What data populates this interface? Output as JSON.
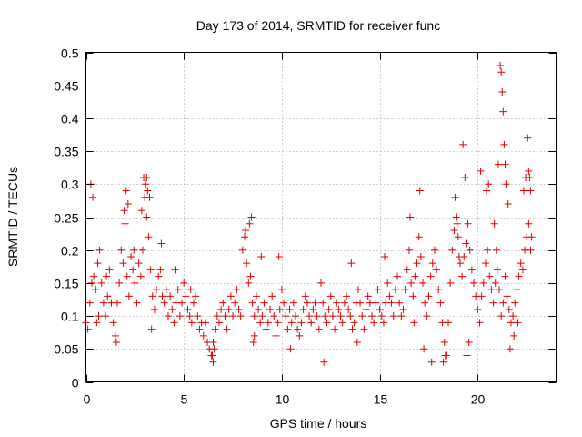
{
  "chart_data": {
    "type": "scatter",
    "title": "Day 173 of 2014, SRMTID for receiver func",
    "xlabel": "GPS time / hours",
    "ylabel": "SRMTID / TECUs",
    "xlim": [
      0,
      24
    ],
    "ylim": [
      0,
      0.5
    ],
    "grid": true,
    "marker": "+",
    "color": "#e00000",
    "x_ticks": [
      0,
      5,
      10,
      15,
      20
    ],
    "x_tick_labels": [
      "0",
      "5",
      "10",
      "15",
      "20"
    ],
    "y_ticks": [
      0,
      0.05,
      0.1,
      0.15,
      0.2,
      0.25,
      0.3,
      0.35,
      0.4,
      0.45,
      0.5
    ],
    "y_tick_labels": [
      "0",
      "0.05",
      "0.1",
      "0.15",
      "0.2",
      "0.25",
      "0.3",
      "0.35",
      "0.4",
      "0.45",
      "0.5"
    ],
    "series": [
      {
        "name": "SRMTID",
        "x": [
          0.0,
          0.1,
          0.2,
          0.3,
          0.4,
          0.5,
          0.6,
          0.7,
          0.8,
          0.9,
          1.0,
          1.1,
          1.2,
          1.3,
          1.4,
          1.5,
          1.6,
          1.7,
          1.8,
          1.9,
          2.0,
          2.1,
          2.2,
          2.3,
          2.4,
          2.5,
          2.6,
          2.7,
          2.8,
          2.9,
          3.0,
          3.1,
          3.2,
          3.3,
          3.4,
          3.5,
          3.6,
          3.7,
          3.8,
          3.9,
          4.0,
          4.1,
          4.2,
          4.3,
          4.4,
          4.5,
          4.6,
          4.7,
          4.8,
          4.9,
          5.0,
          5.1,
          5.2,
          5.3,
          5.4,
          5.5,
          5.6,
          5.7,
          5.8,
          5.9,
          6.0,
          6.1,
          6.2,
          6.3,
          6.4,
          6.5,
          6.6,
          6.7,
          6.8,
          6.9,
          7.0,
          7.1,
          7.2,
          7.3,
          7.4,
          7.5,
          7.6,
          7.7,
          7.8,
          7.9,
          8.0,
          8.1,
          8.2,
          8.3,
          8.4,
          8.5,
          8.6,
          8.7,
          8.8,
          8.9,
          9.0,
          9.1,
          9.2,
          9.3,
          9.4,
          9.5,
          9.6,
          9.7,
          9.8,
          9.9,
          10.0,
          10.1,
          10.2,
          10.3,
          10.4,
          10.5,
          10.6,
          10.7,
          10.8,
          10.9,
          11.0,
          11.1,
          11.2,
          11.3,
          11.4,
          11.5,
          11.6,
          11.7,
          11.8,
          11.9,
          12.0,
          12.1,
          12.2,
          12.3,
          12.4,
          12.5,
          12.6,
          12.7,
          12.8,
          12.9,
          13.0,
          13.1,
          13.2,
          13.3,
          13.4,
          13.5,
          13.6,
          13.7,
          13.8,
          13.9,
          14.0,
          14.1,
          14.2,
          14.3,
          14.4,
          14.5,
          14.6,
          14.7,
          14.8,
          14.9,
          15.0,
          15.1,
          15.2,
          15.3,
          15.4,
          15.5,
          15.6,
          15.7,
          15.8,
          15.9,
          16.0,
          16.1,
          16.2,
          16.3,
          16.4,
          16.5,
          16.6,
          16.7,
          16.8,
          16.9,
          17.0,
          17.1,
          17.2,
          17.3,
          17.4,
          17.5,
          17.6,
          17.7,
          17.8,
          17.9,
          18.0,
          18.1,
          18.2,
          18.3,
          18.4,
          18.5,
          18.6,
          18.7,
          18.8,
          18.9,
          19.0,
          19.1,
          19.2,
          19.3,
          19.4,
          19.5,
          19.6,
          19.7,
          19.8,
          19.9,
          20.0,
          20.1,
          20.2,
          20.3,
          20.4,
          20.5,
          20.6,
          20.7,
          20.8,
          20.9,
          21.0,
          21.1,
          21.2,
          21.3,
          21.4,
          21.5,
          21.6,
          21.7,
          21.8,
          21.9,
          22.0,
          22.1,
          22.2,
          22.3,
          22.4,
          22.5,
          22.6,
          22.7,
          0.25,
          0.35,
          0.55,
          0.65,
          1.05,
          1.55,
          1.95,
          2.05,
          2.15,
          2.45,
          2.85,
          2.95,
          3.05,
          3.1,
          3.15,
          3.25,
          3.35,
          3.85,
          4.55,
          5.35,
          6.45,
          6.5,
          6.55,
          8.15,
          8.35,
          8.45,
          8.55,
          8.6,
          8.95,
          9.85,
          10.45,
          12.15,
          13.55,
          13.85,
          15.25,
          16.55,
          16.75,
          17.05,
          17.25,
          17.65,
          18.25,
          18.35,
          18.85,
          18.95,
          19.05,
          19.25,
          19.35,
          19.45,
          19.55,
          20.15,
          20.45,
          20.55,
          20.85,
          20.95,
          21.05,
          21.15,
          21.2,
          21.25,
          21.3,
          21.35,
          21.4,
          21.45,
          21.55,
          21.65,
          21.85,
          22.05,
          22.35,
          22.45,
          22.55,
          22.6,
          22.65,
          22.7,
          22.75
        ],
        "y": [
          0.09,
          0.08,
          0.12,
          0.15,
          0.16,
          0.14,
          0.18,
          0.2,
          0.15,
          0.12,
          0.1,
          0.13,
          0.17,
          0.12,
          0.09,
          0.07,
          0.12,
          0.15,
          0.2,
          0.18,
          0.24,
          0.16,
          0.13,
          0.19,
          0.17,
          0.15,
          0.12,
          0.18,
          0.16,
          0.2,
          0.28,
          0.25,
          0.22,
          0.17,
          0.13,
          0.11,
          0.14,
          0.16,
          0.17,
          0.13,
          0.12,
          0.14,
          0.1,
          0.13,
          0.11,
          0.09,
          0.12,
          0.14,
          0.1,
          0.12,
          0.15,
          0.13,
          0.11,
          0.1,
          0.09,
          0.12,
          0.13,
          0.1,
          0.08,
          0.09,
          0.07,
          0.09,
          0.06,
          0.05,
          0.04,
          0.06,
          0.08,
          0.1,
          0.09,
          0.11,
          0.12,
          0.1,
          0.08,
          0.11,
          0.13,
          0.1,
          0.12,
          0.14,
          0.11,
          0.1,
          0.2,
          0.22,
          0.18,
          0.15,
          0.16,
          0.12,
          0.1,
          0.13,
          0.11,
          0.09,
          0.1,
          0.12,
          0.08,
          0.09,
          0.11,
          0.13,
          0.1,
          0.07,
          0.09,
          0.11,
          0.14,
          0.12,
          0.1,
          0.08,
          0.11,
          0.09,
          0.12,
          0.1,
          0.08,
          0.07,
          0.09,
          0.11,
          0.13,
          0.12,
          0.1,
          0.09,
          0.11,
          0.12,
          0.1,
          0.08,
          0.15,
          0.12,
          0.1,
          0.09,
          0.11,
          0.13,
          0.1,
          0.08,
          0.12,
          0.11,
          0.1,
          0.09,
          0.12,
          0.13,
          0.11,
          0.1,
          0.08,
          0.09,
          0.12,
          0.14,
          0.12,
          0.1,
          0.08,
          0.11,
          0.13,
          0.12,
          0.1,
          0.09,
          0.12,
          0.14,
          0.11,
          0.1,
          0.09,
          0.12,
          0.15,
          0.13,
          0.12,
          0.1,
          0.14,
          0.16,
          0.12,
          0.1,
          0.11,
          0.14,
          0.17,
          0.2,
          0.15,
          0.13,
          0.16,
          0.18,
          0.22,
          0.19,
          0.15,
          0.12,
          0.1,
          0.13,
          0.16,
          0.18,
          0.2,
          0.17,
          0.14,
          0.12,
          0.09,
          0.06,
          0.04,
          0.09,
          0.15,
          0.2,
          0.23,
          0.25,
          0.22,
          0.18,
          0.16,
          0.19,
          0.21,
          0.24,
          0.2,
          0.17,
          0.15,
          0.13,
          0.11,
          0.09,
          0.13,
          0.15,
          0.18,
          0.2,
          0.16,
          0.14,
          0.12,
          0.15,
          0.17,
          0.14,
          0.1,
          0.12,
          0.16,
          0.13,
          0.11,
          0.09,
          0.1,
          0.12,
          0.14,
          0.16,
          0.18,
          0.17,
          0.2,
          0.22,
          0.24,
          0.2,
          0.3,
          0.28,
          0.09,
          0.1,
          0.16,
          0.06,
          0.26,
          0.29,
          0.27,
          0.2,
          0.26,
          0.31,
          0.3,
          0.31,
          0.29,
          0.28,
          0.08,
          0.21,
          0.17,
          0.14,
          0.04,
          0.03,
          0.05,
          0.23,
          0.24,
          0.25,
          0.06,
          0.07,
          0.19,
          0.19,
          0.05,
          0.03,
          0.18,
          0.06,
          0.19,
          0.25,
          0.09,
          0.29,
          0.05,
          0.03,
          0.03,
          0.04,
          0.28,
          0.24,
          0.19,
          0.36,
          0.31,
          0.04,
          0.06,
          0.32,
          0.29,
          0.3,
          0.24,
          0.2,
          0.33,
          0.48,
          0.47,
          0.44,
          0.41,
          0.36,
          0.33,
          0.3,
          0.27,
          0.05,
          0.07,
          0.09,
          0.29,
          0.31,
          0.37,
          0.32,
          0.31,
          0.29,
          0.22
        ]
      }
    ]
  }
}
